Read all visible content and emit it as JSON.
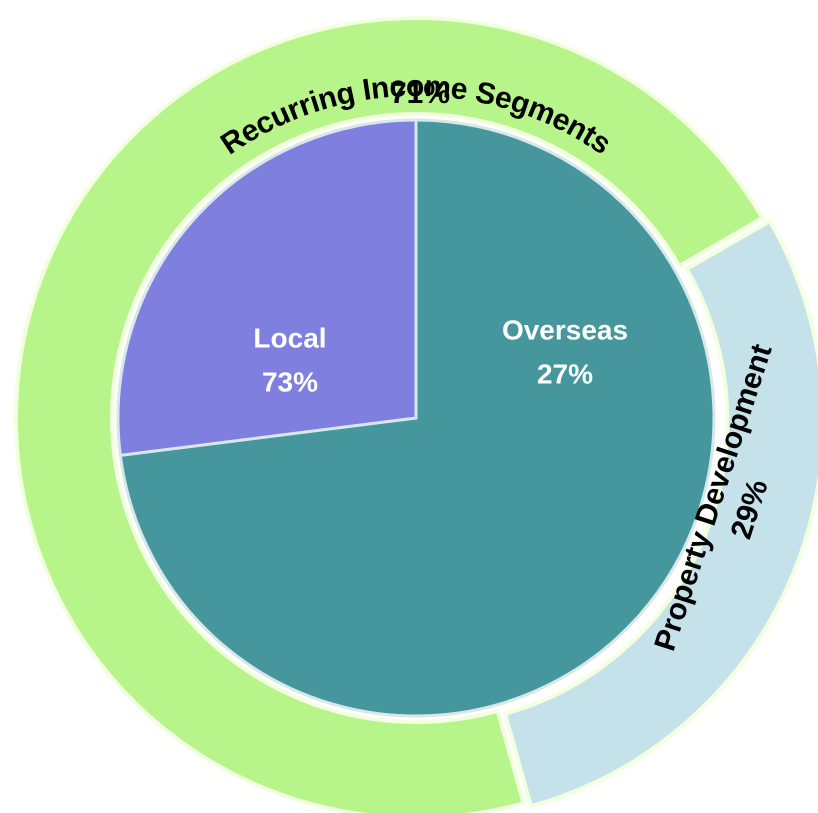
{
  "chart_data": [
    {
      "type": "pie",
      "categories": [
        "Local",
        "Overseas"
      ],
      "values": [
        73,
        27
      ],
      "value_labels": [
        "73%",
        "27%"
      ],
      "colors": [
        "#45979d",
        "#7f7fdf"
      ]
    },
    {
      "type": "donut",
      "categories": [
        "Recurring Income Segments",
        "Property Development"
      ],
      "values": [
        71,
        29
      ],
      "value_labels": [
        "71%",
        "29%"
      ],
      "colors": [
        "#b7f58a",
        "#c5e2ea"
      ]
    }
  ]
}
